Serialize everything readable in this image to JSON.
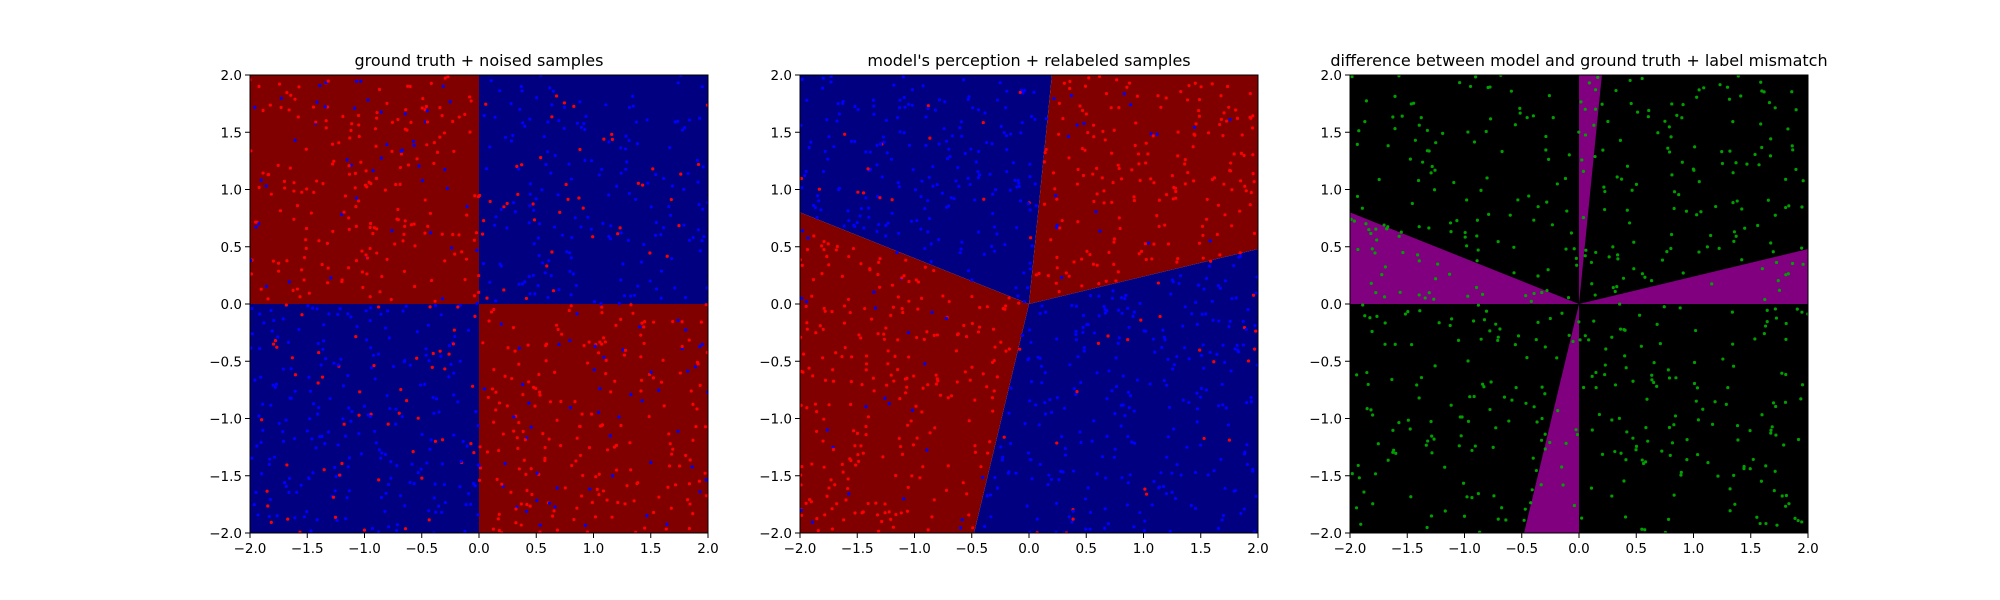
{
  "figure": {
    "background": "#ffffff"
  },
  "colors": {
    "region_red": "#800000",
    "region_blue": "#000080",
    "point_red": "#ff0000",
    "point_blue": "#0000ff",
    "diff_none": "#000000",
    "diff_mismatch": "#800080",
    "point_green": "#00a000"
  },
  "chart_data": [
    {
      "type": "scatter",
      "title": "ground truth + noised samples",
      "xlabel": "",
      "ylabel": "",
      "xlim": [
        -2.0,
        2.0
      ],
      "ylim": [
        -2.0,
        2.0
      ],
      "xticks": [
        "−2.0",
        "−1.5",
        "−1.0",
        "−0.5",
        "0.0",
        "0.5",
        "1.0",
        "1.5",
        "2.0"
      ],
      "yticks": [
        "−2.0",
        "−1.5",
        "−1.0",
        "−0.5",
        "0.0",
        "0.5",
        "1.0",
        "1.5",
        "2.0"
      ],
      "background": "quadrant regions: red where x*y<0 (quadrants II and IV), blue where x*y>0 (quadrants I and III)",
      "regions": [
        {
          "color": "#800000",
          "polygon": [
            [
              -2,
              0
            ],
            [
              0,
              0
            ],
            [
              0,
              2
            ],
            [
              -2,
              2
            ]
          ]
        },
        {
          "color": "#000080",
          "polygon": [
            [
              0,
              0
            ],
            [
              2,
              0
            ],
            [
              2,
              2
            ],
            [
              0,
              2
            ]
          ]
        },
        {
          "color": "#000080",
          "polygon": [
            [
              -2,
              -2
            ],
            [
              0,
              -2
            ],
            [
              0,
              0
            ],
            [
              -2,
              0
            ]
          ]
        },
        {
          "color": "#800000",
          "polygon": [
            [
              0,
              -2
            ],
            [
              2,
              -2
            ],
            [
              2,
              0
            ],
            [
              0,
              0
            ]
          ]
        }
      ],
      "series": [
        {
          "color": "#ff0000",
          "points_approx": 500,
          "description": "uniform samples on [-2,2]^2, labeled red with noise"
        },
        {
          "color": "#0000ff",
          "points_approx": 500,
          "description": "uniform samples on [-2,2]^2, labeled blue with noise"
        }
      ]
    },
    {
      "type": "scatter",
      "title": "model's perception + relabeled samples",
      "xlabel": "",
      "ylabel": "",
      "xlim": [
        -2.0,
        2.0
      ],
      "ylim": [
        -2.0,
        2.0
      ],
      "xticks": [
        "−2.0",
        "−1.5",
        "−1.0",
        "−0.5",
        "0.0",
        "0.5",
        "1.0",
        "1.5",
        "2.0"
      ],
      "yticks": [
        "−2.0",
        "−1.5",
        "−1.0",
        "−0.5",
        "0.0",
        "0.5",
        "1.0",
        "1.5",
        "2.0"
      ],
      "background": "four wedge regions meeting at origin, rotated from the axes",
      "regions": [
        {
          "color": "#000080",
          "polygon": [
            [
              0,
              0
            ],
            [
              -2,
              0.8
            ],
            [
              -2,
              2
            ],
            [
              0.2,
              2
            ]
          ]
        },
        {
          "color": "#800000",
          "polygon": [
            [
              0,
              0
            ],
            [
              0.2,
              2
            ],
            [
              2,
              2
            ],
            [
              2,
              0.48
            ]
          ]
        },
        {
          "color": "#000080",
          "polygon": [
            [
              0,
              0
            ],
            [
              2,
              0.48
            ],
            [
              2,
              -2
            ],
            [
              -0.48,
              -2
            ]
          ]
        },
        {
          "color": "#800000",
          "polygon": [
            [
              0,
              0
            ],
            [
              -0.48,
              -2
            ],
            [
              -2,
              -2
            ],
            [
              -2,
              0.8
            ]
          ]
        }
      ],
      "series": [
        {
          "color": "#ff0000",
          "points_approx": 500,
          "description": "samples relabeled red by the model"
        },
        {
          "color": "#0000ff",
          "points_approx": 500,
          "description": "samples relabeled blue by the model"
        }
      ]
    },
    {
      "type": "scatter",
      "title": "difference between model and ground truth + label mismatch",
      "xlabel": "",
      "ylabel": "",
      "xlim": [
        -2.0,
        2.0
      ],
      "ylim": [
        -2.0,
        2.0
      ],
      "xticks": [
        "−2.0",
        "−1.5",
        "−1.0",
        "−0.5",
        "0.0",
        "0.5",
        "1.0",
        "1.5",
        "2.0"
      ],
      "yticks": [
        "−2.0",
        "−1.5",
        "−1.0",
        "−0.5",
        "0.0",
        "0.5",
        "1.0",
        "1.5",
        "2.0"
      ],
      "background": "black where model agrees with ground truth, purple wedges where it disagrees",
      "regions": [
        {
          "color": "#000000",
          "polygon": [
            [
              -2,
              -2
            ],
            [
              2,
              -2
            ],
            [
              2,
              2
            ],
            [
              -2,
              2
            ]
          ]
        },
        {
          "color": "#800080",
          "polygon": [
            [
              0,
              0
            ],
            [
              0,
              2
            ],
            [
              0.2,
              2
            ]
          ]
        },
        {
          "color": "#800080",
          "polygon": [
            [
              0,
              0
            ],
            [
              2,
              0.48
            ],
            [
              2,
              0
            ]
          ]
        },
        {
          "color": "#800080",
          "polygon": [
            [
              0,
              0
            ],
            [
              0,
              -2
            ],
            [
              -0.48,
              -2
            ]
          ]
        },
        {
          "color": "#800080",
          "polygon": [
            [
              0,
              0
            ],
            [
              -2,
              0
            ],
            [
              -2,
              0.8
            ]
          ]
        }
      ],
      "series": [
        {
          "color": "#00a000",
          "points_approx": 500,
          "description": "samples whose label mismatches"
        }
      ]
    }
  ]
}
